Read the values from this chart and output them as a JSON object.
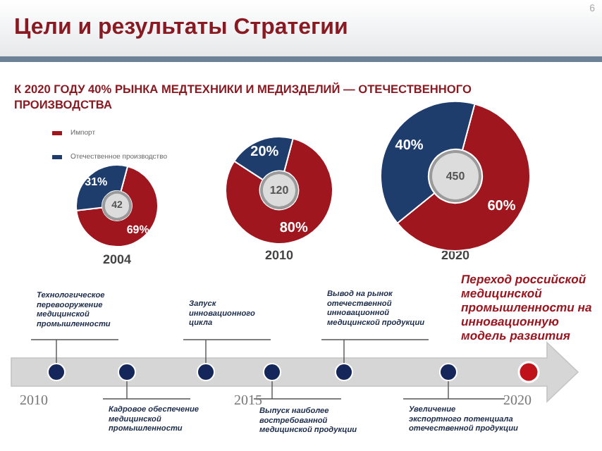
{
  "chart_data": [
    {
      "type": "donut",
      "title": "Цели и результаты Стратегии",
      "subtitle": "К 2020 ГОДУ 40% РЫНКА МЕДТЕХНИКИ И МЕДИЗДЕЛИЙ — ОТЕЧЕСТВЕННОГО ПРОИЗВОДСТВА",
      "xlabel": "2004",
      "categories": [
        "Импорт",
        "Отечественное производство"
      ],
      "values": [
        69,
        31
      ],
      "value_labels": [
        "69%",
        "31%"
      ],
      "colors": [
        "#a0161e",
        "#1e3c6c"
      ],
      "annotations": [
        "42"
      ],
      "legend": "top left"
    },
    {
      "type": "donut",
      "xlabel": "2010",
      "categories": [
        null,
        null
      ],
      "values": [
        80,
        20
      ],
      "value_labels": [
        "80%",
        "20%"
      ],
      "colors": [
        "#a0161e",
        "#1e3c6c"
      ],
      "annotations": [
        "120"
      ]
    },
    {
      "type": "donut",
      "xlabel": "2020",
      "categories": [
        null,
        null
      ],
      "values": [
        60,
        40
      ],
      "value_labels": [
        "60%",
        "40%"
      ],
      "colors": [
        "#a0161e",
        "#1e3c6c"
      ],
      "annotations": [
        "450"
      ]
    },
    {
      "type": "other",
      "annotations": [
        "2010",
        "2015",
        "2020",
        "Технологическое\nперевооружение\nмедицинской\nпромышленности",
        "Кадровое обеспечение\nмедицинской\nпромышленности",
        "Запуск\nинновационного\nцикла",
        "Выпуск наиболее\nвостребованной\nмедицинской продукции",
        "Вывод на рынок\nотечественной\nинновационной\nмедицинской продукции",
        "Увеличение\nэкспортного потенциала\nотечественной продукции",
        "Переход российской\nмедицинской\nпромышленности на\nинновационную\nмодель развития",
        "6"
      ]
    }
  ]
}
